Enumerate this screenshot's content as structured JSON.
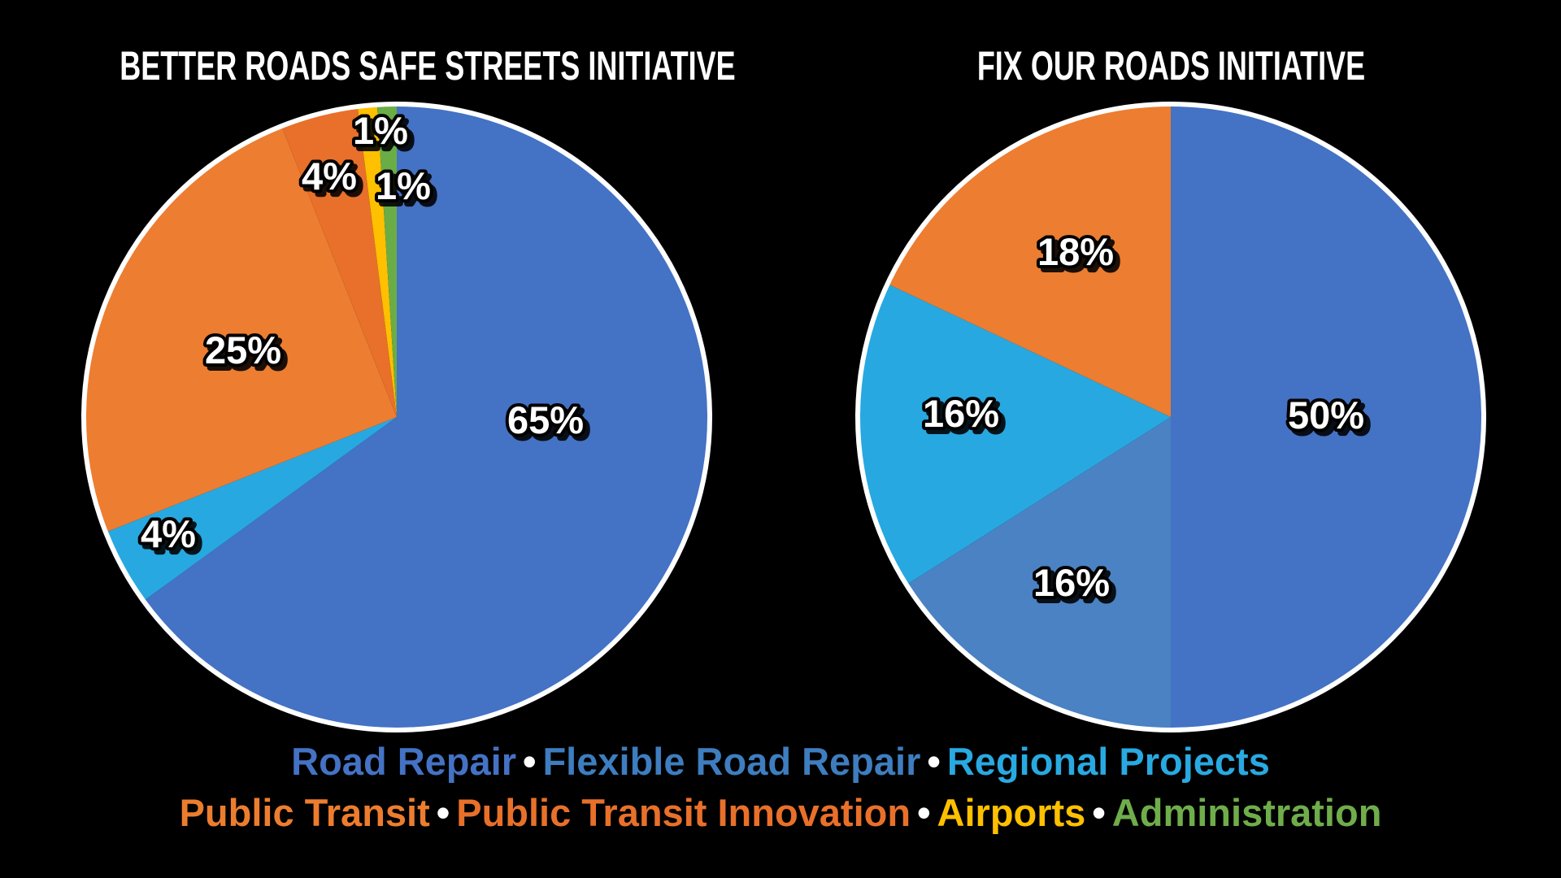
{
  "page": {
    "background_color": "#000000"
  },
  "chart_data": [
    {
      "type": "pie",
      "title": "BETTER ROADS SAFE STREETS INITIATIVE",
      "direction": "clockwise",
      "start_angle": "12-oclock",
      "legend_position": "bottom-shared",
      "categories": [
        "Road Repair",
        "Regional Projects",
        "Public Transit",
        "Public Transit Innovation",
        "Airports",
        "Administration"
      ],
      "values": [
        65,
        4,
        25,
        4,
        1,
        1
      ],
      "labels": [
        "65%",
        "4%",
        "25%",
        "4%",
        "1%",
        "1%"
      ],
      "colors": [
        "#4472C4",
        "#28A8E0",
        "#ED7D31",
        "#E8702A",
        "#FFC000",
        "#6AAD46"
      ],
      "outline_color": "#FFFFFF"
    },
    {
      "type": "pie",
      "title": "FIX OUR ROADS INITIATIVE",
      "direction": "clockwise",
      "start_angle": "12-oclock",
      "legend_position": "bottom-shared",
      "categories": [
        "Road Repair",
        "Flexible Road Repair",
        "Regional Projects",
        "Public Transit"
      ],
      "values": [
        50,
        16,
        16,
        18
      ],
      "labels": [
        "50%",
        "16%",
        "16%",
        "18%"
      ],
      "colors": [
        "#4472C4",
        "#4A82C3",
        "#28A8E0",
        "#ED7D31"
      ],
      "outline_color": "#FFFFFF"
    }
  ],
  "legend": {
    "separator": "•",
    "separator_color": "#FFFFFF",
    "rows": [
      [
        {
          "label": "Road Repair",
          "color": "#4472C4"
        },
        {
          "label": "Flexible Road Repair",
          "color": "#3E7DBF"
        },
        {
          "label": "Regional Projects",
          "color": "#29A9E1"
        }
      ],
      [
        {
          "label": "Public Transit",
          "color": "#EC7D2F"
        },
        {
          "label": "Public Transit Innovation",
          "color": "#E8702A"
        },
        {
          "label": "Airports",
          "color": "#FFC000"
        },
        {
          "label": "Administration",
          "color": "#6FAD4B"
        }
      ]
    ]
  }
}
